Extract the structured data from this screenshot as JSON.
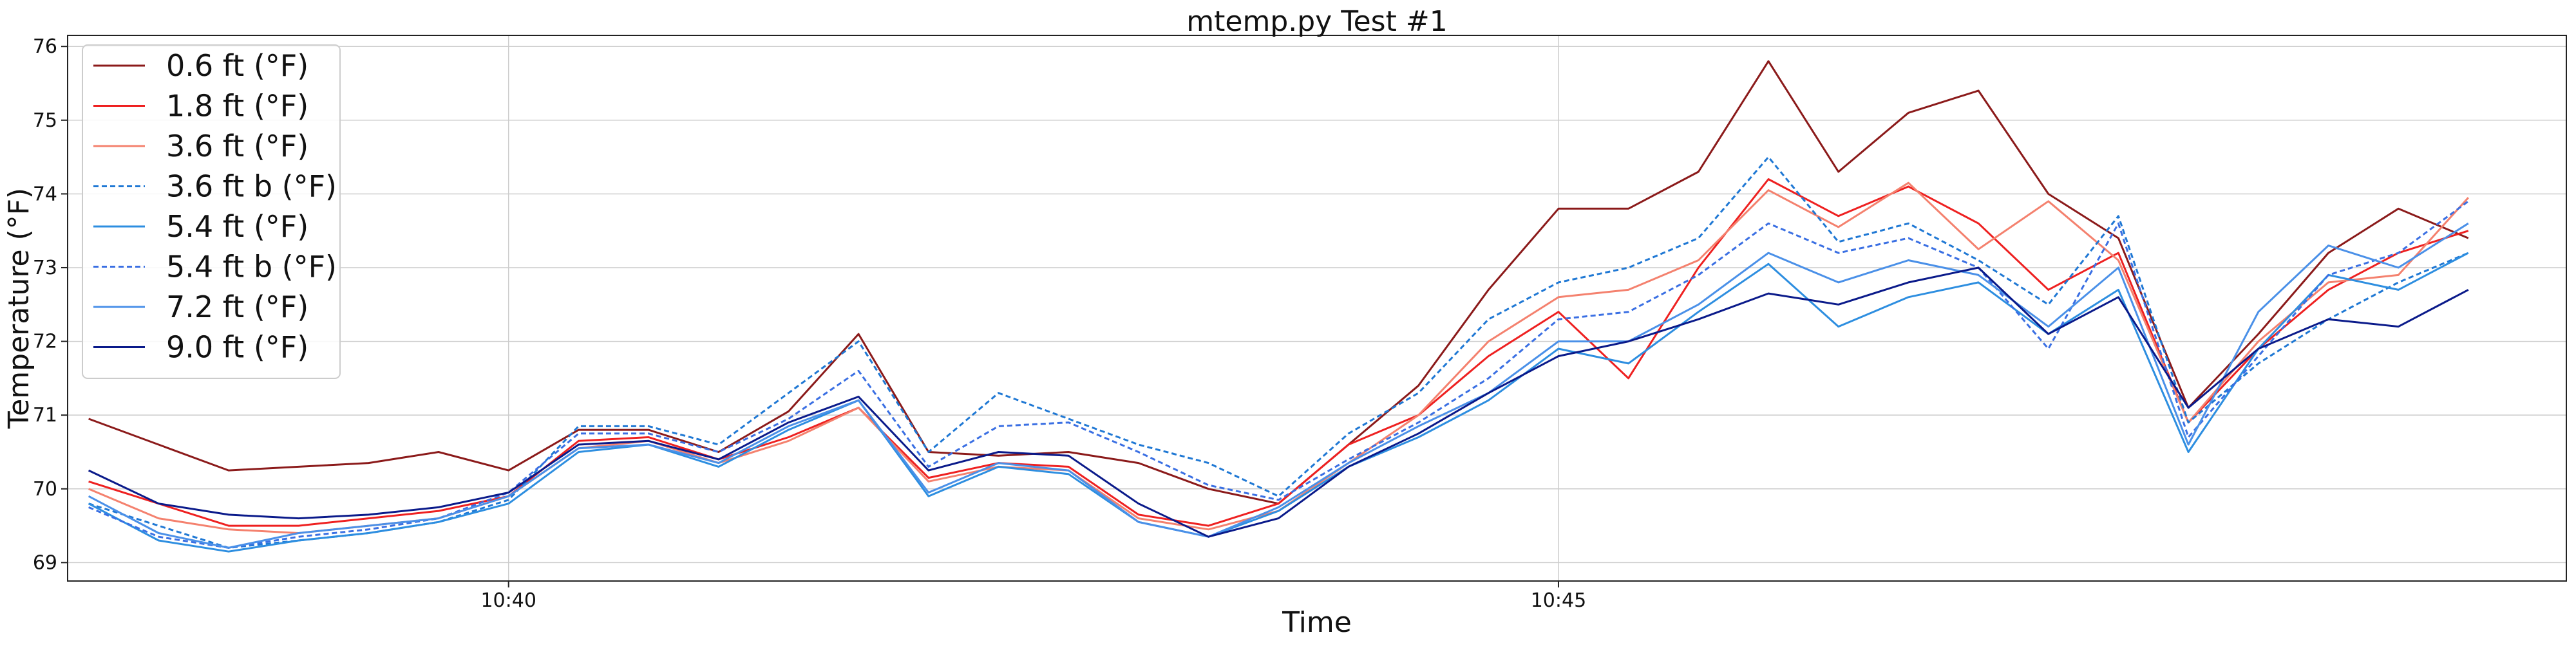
{
  "chart_data": {
    "type": "line",
    "title": "mtemp.py Test #1",
    "xlabel": "Time",
    "ylabel": "Temperature (°F)",
    "xlim": [
      "10:37:54",
      "10:49:48"
    ],
    "ylim": [
      68.75,
      76.15
    ],
    "x_ticks": [
      "10:40",
      "10:45"
    ],
    "y_ticks": [
      69,
      70,
      71,
      72,
      73,
      74,
      75,
      76
    ],
    "grid": true,
    "legend_position": "top-left",
    "x": [
      "10:38:00",
      "10:38:20",
      "10:38:40",
      "10:39:00",
      "10:39:20",
      "10:39:40",
      "10:40:00",
      "10:40:20",
      "10:40:40",
      "10:41:00",
      "10:41:20",
      "10:41:40",
      "10:42:00",
      "10:42:20",
      "10:42:40",
      "10:43:00",
      "10:43:20",
      "10:43:40",
      "10:44:00",
      "10:44:20",
      "10:44:40",
      "10:45:00",
      "10:45:20",
      "10:45:40",
      "10:46:00",
      "10:46:20",
      "10:46:40",
      "10:47:00",
      "10:47:20",
      "10:47:40",
      "10:48:00",
      "10:48:20",
      "10:48:40",
      "10:49:00",
      "10:49:20"
    ],
    "series": [
      {
        "name": "0.6 ft  (°F)",
        "color": "#8b1a1a",
        "dash": "solid",
        "values": [
          70.95,
          70.6,
          70.25,
          70.3,
          70.35,
          70.5,
          70.25,
          70.8,
          70.8,
          70.5,
          71.05,
          72.1,
          70.5,
          70.45,
          70.5,
          70.35,
          70.0,
          69.8,
          70.6,
          71.4,
          72.7,
          73.8,
          73.8,
          74.3,
          75.8,
          74.3,
          75.1,
          75.4,
          74.0,
          73.4,
          71.1,
          72.1,
          73.2,
          73.8,
          73.4
        ]
      },
      {
        "name": "1.8 ft  (°F)",
        "color": "#ee2020",
        "dash": "solid",
        "values": [
          70.1,
          69.8,
          69.5,
          69.5,
          69.6,
          69.7,
          69.9,
          70.65,
          70.7,
          70.4,
          70.7,
          71.1,
          70.15,
          70.35,
          70.3,
          69.65,
          69.5,
          69.8,
          70.6,
          71.0,
          71.8,
          72.4,
          71.5,
          73.0,
          74.2,
          73.7,
          74.1,
          73.6,
          72.7,
          73.2,
          70.9,
          71.9,
          72.7,
          73.2,
          73.5
        ]
      },
      {
        "name": "3.6 ft  (°F)",
        "color": "#f4816e",
        "dash": "solid",
        "values": [
          70.0,
          69.6,
          69.45,
          69.4,
          69.5,
          69.6,
          69.9,
          70.55,
          70.65,
          70.35,
          70.65,
          71.1,
          70.1,
          70.3,
          70.25,
          69.6,
          69.45,
          69.7,
          70.35,
          71.0,
          72.0,
          72.6,
          72.7,
          73.1,
          74.05,
          73.55,
          74.15,
          73.25,
          73.9,
          73.1,
          70.9,
          72.0,
          72.8,
          72.9,
          73.95
        ]
      },
      {
        "name": "3.6 ft b  (°F)",
        "color": "#1f78d4",
        "dash": "dashed",
        "values": [
          69.8,
          69.5,
          69.2,
          69.3,
          69.4,
          69.55,
          69.85,
          70.85,
          70.85,
          70.6,
          71.3,
          72.0,
          70.5,
          71.3,
          70.95,
          70.6,
          70.35,
          69.9,
          70.75,
          71.3,
          72.3,
          72.8,
          73.0,
          73.4,
          74.5,
          73.35,
          73.6,
          73.1,
          72.5,
          73.7,
          70.9,
          71.7,
          72.3,
          72.8,
          73.2
        ]
      },
      {
        "name": "5.4 ft  (°F)",
        "color": "#2d8ee0",
        "dash": "solid",
        "values": [
          69.8,
          69.3,
          69.15,
          69.3,
          69.4,
          69.55,
          69.8,
          70.5,
          70.6,
          70.3,
          70.8,
          71.2,
          69.9,
          70.3,
          70.2,
          69.55,
          69.35,
          69.7,
          70.3,
          70.7,
          71.2,
          71.9,
          71.7,
          72.4,
          73.05,
          72.2,
          72.6,
          72.8,
          72.1,
          72.7,
          70.5,
          71.9,
          72.9,
          72.7,
          73.2
        ]
      },
      {
        "name": "5.4 ft b  (°F)",
        "color": "#3a6fe3",
        "dash": "dashed",
        "values": [
          69.75,
          69.35,
          69.2,
          69.35,
          69.45,
          69.6,
          69.95,
          70.75,
          70.75,
          70.5,
          70.95,
          71.6,
          70.3,
          70.85,
          70.9,
          70.5,
          70.05,
          69.85,
          70.4,
          70.9,
          71.5,
          72.3,
          72.4,
          72.9,
          73.6,
          73.2,
          73.4,
          73.0,
          71.9,
          73.6,
          70.7,
          71.8,
          72.9,
          73.2,
          73.9
        ]
      },
      {
        "name": "7.2 ft  (°F)",
        "color": "#4a90e8",
        "dash": "solid",
        "values": [
          69.9,
          69.4,
          69.2,
          69.4,
          69.5,
          69.6,
          69.9,
          70.55,
          70.6,
          70.35,
          70.85,
          71.2,
          69.95,
          70.35,
          70.25,
          69.55,
          69.35,
          69.75,
          70.35,
          70.85,
          71.3,
          72.0,
          72.0,
          72.5,
          73.2,
          72.8,
          73.1,
          72.9,
          72.2,
          73.0,
          70.6,
          72.4,
          73.3,
          73.0,
          73.6
        ]
      },
      {
        "name": "9.0 ft  (°F)",
        "color": "#0a1a8a",
        "dash": "solid",
        "values": [
          70.25,
          69.8,
          69.65,
          69.6,
          69.65,
          69.75,
          69.95,
          70.6,
          70.65,
          70.4,
          70.9,
          71.25,
          70.25,
          70.5,
          70.45,
          69.8,
          69.35,
          69.6,
          70.3,
          70.75,
          71.3,
          71.8,
          72.0,
          72.3,
          72.65,
          72.5,
          72.8,
          73.0,
          72.1,
          72.6,
          71.1,
          71.9,
          72.3,
          72.2,
          72.7
        ]
      }
    ]
  }
}
